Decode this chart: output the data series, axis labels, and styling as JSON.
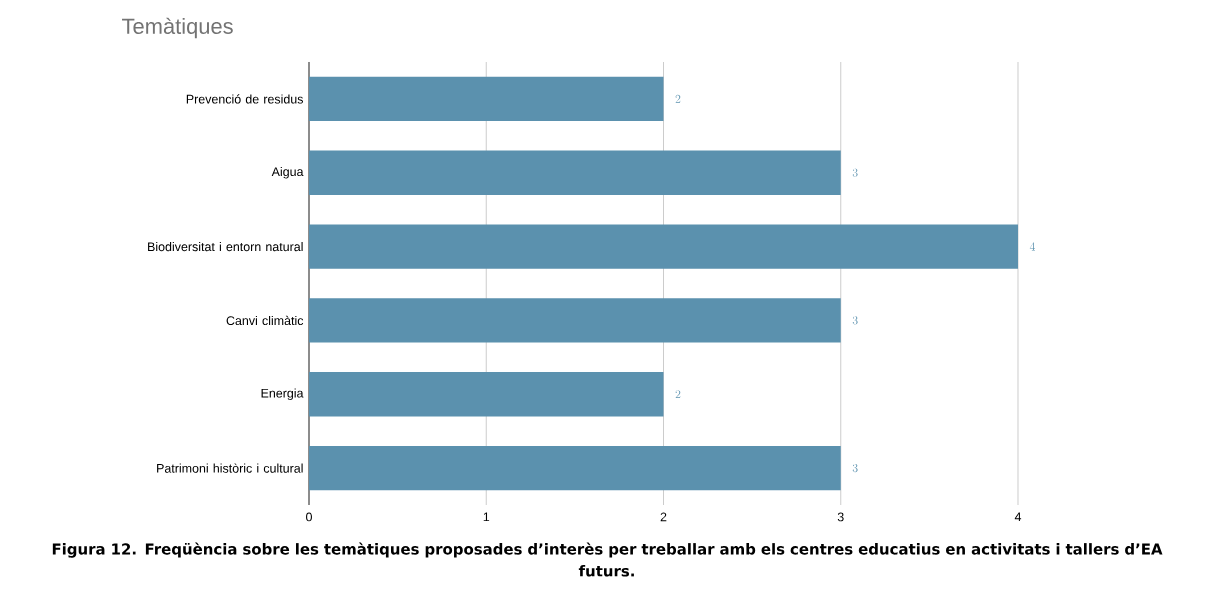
{
  "chart_data": {
    "type": "bar",
    "orientation": "horizontal",
    "title": "Temàtiques",
    "categories": [
      "Prevenció de residus",
      "Aigua",
      "Biodiversitat i entorn natural",
      "Canvi climàtic",
      "Energia",
      "Patrimoni històric i cultural"
    ],
    "values": [
      2,
      3,
      4,
      3,
      2,
      3
    ],
    "color": "#5b91ae",
    "xlim": [
      0,
      4
    ],
    "xticks": [
      0,
      1,
      2,
      3,
      4
    ],
    "grid": "x",
    "data_labels": true,
    "annotations": [
      "Figura 12. Freqüència sobre les temàtiques proposades d’interès per treballar amb els centres educatius en activitats i tallers d’EA futurs."
    ]
  }
}
